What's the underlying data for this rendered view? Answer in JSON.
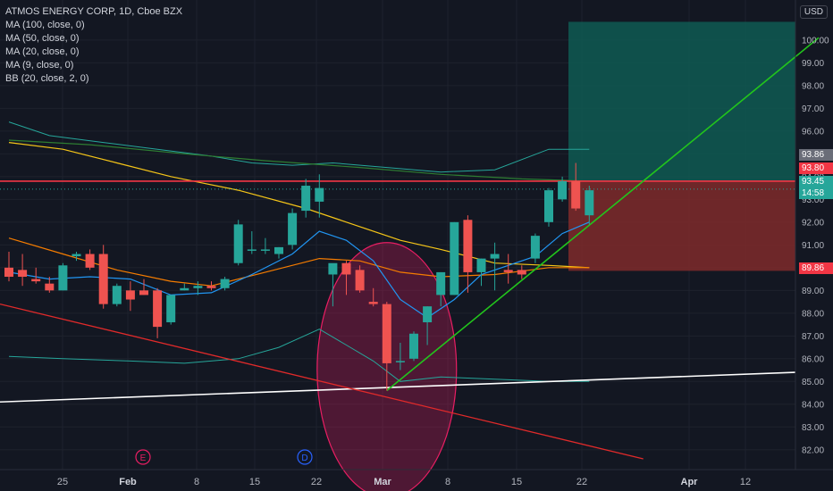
{
  "header": {
    "title": "ATMOS ENERGY CORP, 1D, Cboe BZX",
    "indicators": [
      "MA (100, close, 0)",
      "MA (50, close, 0)",
      "MA (20, close, 0)",
      "MA (9, close, 0)",
      "BB (20, close, 2, 0)"
    ],
    "currency": "USD"
  },
  "price_tags": {
    "upper_level": "93.86",
    "resistance": "93.80",
    "last_price": "93.45",
    "countdown": "14:58",
    "stop_level": "89.86"
  },
  "event_markers": [
    {
      "label": "E",
      "x": "Feb 1"
    },
    {
      "label": "D",
      "x": "Feb 19"
    }
  ],
  "colors": {
    "background": "#131722",
    "up": "#26a69a",
    "down": "#ef5350",
    "target_zone": "#0f5b52",
    "stop_zone": "#7f2a2a",
    "resistance_line": "#f23645",
    "trend_line": "#22c51c",
    "support_line": "#ffffff"
  },
  "chart_data": {
    "type": "candlestick",
    "symbol": "ATMOS ENERGY CORP",
    "interval": "1D",
    "exchange": "Cboe BZX",
    "y_range": [
      81.6,
      100.7
    ],
    "y_ticks": [
      "82.00",
      "83.00",
      "84.00",
      "85.00",
      "86.00",
      "87.00",
      "88.00",
      "89.00",
      "90.00",
      "91.00",
      "92.00",
      "93.00",
      "94.00",
      "95.00",
      "96.00",
      "97.00",
      "98.00",
      "99.00",
      "100.00"
    ],
    "x_ticks": [
      {
        "label": "25",
        "bold": false
      },
      {
        "label": "Feb",
        "bold": true
      },
      {
        "label": "8",
        "bold": false
      },
      {
        "label": "15",
        "bold": false
      },
      {
        "label": "22",
        "bold": false
      },
      {
        "label": "Mar",
        "bold": true
      },
      {
        "label": "8",
        "bold": false
      },
      {
        "label": "15",
        "bold": false
      },
      {
        "label": "22",
        "bold": false
      },
      {
        "label": "Apr",
        "bold": true
      },
      {
        "label": "12",
        "bold": false
      }
    ],
    "candles": [
      {
        "o": 90.0,
        "h": 90.7,
        "l": 89.4,
        "c": 89.6
      },
      {
        "o": 89.9,
        "h": 90.6,
        "l": 89.2,
        "c": 89.6
      },
      {
        "o": 89.5,
        "h": 90.0,
        "l": 89.3,
        "c": 89.4
      },
      {
        "o": 89.3,
        "h": 89.6,
        "l": 88.9,
        "c": 89.0
      },
      {
        "o": 89.0,
        "h": 90.2,
        "l": 89.0,
        "c": 90.1
      },
      {
        "o": 90.5,
        "h": 90.7,
        "l": 90.3,
        "c": 90.6
      },
      {
        "o": 90.6,
        "h": 90.8,
        "l": 89.9,
        "c": 90.0
      },
      {
        "o": 90.6,
        "h": 91.0,
        "l": 88.2,
        "c": 88.4
      },
      {
        "o": 88.4,
        "h": 89.3,
        "l": 88.3,
        "c": 89.2
      },
      {
        "o": 89.0,
        "h": 89.4,
        "l": 88.1,
        "c": 88.6
      },
      {
        "o": 89.0,
        "h": 89.5,
        "l": 88.8,
        "c": 88.8
      },
      {
        "o": 89.0,
        "h": 89.1,
        "l": 86.9,
        "c": 87.4
      },
      {
        "o": 87.6,
        "h": 88.8,
        "l": 87.5,
        "c": 88.8
      },
      {
        "o": 89.0,
        "h": 89.3,
        "l": 89.0,
        "c": 89.1
      },
      {
        "o": 89.1,
        "h": 89.4,
        "l": 88.8,
        "c": 89.2
      },
      {
        "o": 89.2,
        "h": 89.4,
        "l": 89.0,
        "c": 89.1
      },
      {
        "o": 89.1,
        "h": 89.6,
        "l": 89.0,
        "c": 89.5
      },
      {
        "o": 90.2,
        "h": 92.1,
        "l": 90.1,
        "c": 91.9
      },
      {
        "o": 90.8,
        "h": 91.6,
        "l": 90.6,
        "c": 90.8
      },
      {
        "o": 90.8,
        "h": 91.3,
        "l": 90.6,
        "c": 90.8
      },
      {
        "o": 90.6,
        "h": 90.9,
        "l": 90.4,
        "c": 90.9
      },
      {
        "o": 91.0,
        "h": 92.6,
        "l": 90.8,
        "c": 92.4
      },
      {
        "o": 92.5,
        "h": 93.9,
        "l": 92.2,
        "c": 93.6
      },
      {
        "o": 92.9,
        "h": 94.1,
        "l": 92.2,
        "c": 93.5
      },
      {
        "o": 89.7,
        "h": 90.1,
        "l": 88.3,
        "c": 90.2
      },
      {
        "o": 90.2,
        "h": 90.3,
        "l": 88.8,
        "c": 89.7
      },
      {
        "o": 89.9,
        "h": 90.1,
        "l": 88.9,
        "c": 89.0
      },
      {
        "o": 88.5,
        "h": 89.1,
        "l": 88.3,
        "c": 88.4
      },
      {
        "o": 88.4,
        "h": 88.5,
        "l": 84.6,
        "c": 85.8
      },
      {
        "o": 85.9,
        "h": 86.7,
        "l": 85.5,
        "c": 85.9
      },
      {
        "o": 86.0,
        "h": 87.2,
        "l": 85.9,
        "c": 87.1
      },
      {
        "o": 87.6,
        "h": 88.3,
        "l": 86.6,
        "c": 88.3
      },
      {
        "o": 88.8,
        "h": 89.8,
        "l": 88.3,
        "c": 89.8
      },
      {
        "o": 88.8,
        "h": 92.0,
        "l": 88.8,
        "c": 92.0
      },
      {
        "o": 92.1,
        "h": 92.3,
        "l": 88.9,
        "c": 89.8
      },
      {
        "o": 89.8,
        "h": 90.4,
        "l": 89.2,
        "c": 90.4
      },
      {
        "o": 90.4,
        "h": 91.1,
        "l": 89.0,
        "c": 90.6
      },
      {
        "o": 89.9,
        "h": 90.6,
        "l": 89.3,
        "c": 89.8
      },
      {
        "o": 89.9,
        "h": 90.1,
        "l": 89.5,
        "c": 89.7
      },
      {
        "o": 90.4,
        "h": 91.5,
        "l": 90.2,
        "c": 91.4
      },
      {
        "o": 92.0,
        "h": 93.5,
        "l": 91.8,
        "c": 93.4
      },
      {
        "o": 93.0,
        "h": 94.0,
        "l": 92.9,
        "c": 93.8
      },
      {
        "o": 93.8,
        "h": 94.6,
        "l": 92.5,
        "c": 92.6
      },
      {
        "o": 92.3,
        "h": 93.6,
        "l": 91.9,
        "c": 93.4
      }
    ],
    "moving_averages": [
      {
        "name": "MA (100, close, 0)",
        "color": "#2e7d32",
        "points": [
          [
            0,
            95.6
          ],
          [
            6,
            95.4
          ],
          [
            13,
            95.0
          ],
          [
            19,
            94.7
          ],
          [
            26,
            94.4
          ],
          [
            32,
            94.1
          ],
          [
            38,
            93.9
          ],
          [
            43,
            93.8
          ]
        ]
      },
      {
        "name": "MA (50, close, 0)",
        "color": "#f5c518",
        "points": [
          [
            0,
            95.5
          ],
          [
            4,
            95.2
          ],
          [
            8,
            94.6
          ],
          [
            12,
            94.0
          ],
          [
            17,
            93.4
          ],
          [
            22,
            92.6
          ],
          [
            26,
            91.8
          ],
          [
            29,
            91.2
          ],
          [
            32,
            90.8
          ],
          [
            36,
            90.2
          ],
          [
            40,
            90.1
          ],
          [
            43,
            90.0
          ]
        ]
      },
      {
        "name": "MA (20, close, 0)",
        "color": "#f57c00",
        "points": [
          [
            0,
            91.3
          ],
          [
            4,
            90.6
          ],
          [
            8,
            89.9
          ],
          [
            12,
            89.4
          ],
          [
            15,
            89.2
          ],
          [
            19,
            89.8
          ],
          [
            23,
            90.4
          ],
          [
            26,
            90.3
          ],
          [
            29,
            89.8
          ],
          [
            32,
            89.6
          ],
          [
            36,
            89.7
          ],
          [
            40,
            90.0
          ],
          [
            43,
            90.0
          ]
        ]
      },
      {
        "name": "MA (9, close, 0)",
        "color": "#2196f3",
        "points": [
          [
            0,
            89.8
          ],
          [
            3,
            89.5
          ],
          [
            6,
            89.6
          ],
          [
            9,
            89.5
          ],
          [
            12,
            88.8
          ],
          [
            15,
            88.9
          ],
          [
            18,
            89.7
          ],
          [
            21,
            90.6
          ],
          [
            23,
            91.6
          ],
          [
            25,
            91.2
          ],
          [
            27,
            90.3
          ],
          [
            29,
            88.6
          ],
          [
            31,
            87.8
          ],
          [
            33,
            88.6
          ],
          [
            35,
            89.7
          ],
          [
            37,
            90.1
          ],
          [
            39,
            90.5
          ],
          [
            41,
            91.5
          ],
          [
            43,
            92.0
          ]
        ]
      }
    ],
    "bollinger": {
      "name": "BB (20, close, 2, 0)",
      "color": "#26a69a",
      "upper": [
        [
          0,
          96.4
        ],
        [
          3,
          95.8
        ],
        [
          7,
          95.5
        ],
        [
          11,
          95.2
        ],
        [
          15,
          94.9
        ],
        [
          18,
          94.6
        ],
        [
          21,
          94.5
        ],
        [
          24,
          94.6
        ],
        [
          28,
          94.4
        ],
        [
          32,
          94.2
        ],
        [
          36,
          94.3
        ],
        [
          40,
          95.2
        ],
        [
          43,
          95.2
        ]
      ],
      "lower": [
        [
          0,
          86.1
        ],
        [
          4,
          86.0
        ],
        [
          9,
          85.9
        ],
        [
          13,
          85.8
        ],
        [
          17,
          86.0
        ],
        [
          20,
          86.5
        ],
        [
          23,
          87.3
        ],
        [
          25,
          86.6
        ],
        [
          27,
          85.9
        ],
        [
          29,
          85.0
        ],
        [
          32,
          85.2
        ],
        [
          36,
          85.1
        ],
        [
          40,
          85.0
        ],
        [
          43,
          85.0
        ]
      ],
      "basis_reference": "MA (20, close, 0)"
    },
    "drawings": {
      "resistance": 93.8,
      "long_position": {
        "entry": 93.8,
        "target": 100.8,
        "stop": 89.86
      },
      "trend_line": {
        "from": [
          28,
          84.6
        ],
        "to": [
          60,
          100.1
        ]
      },
      "support_line": [
        [
          -2,
          84.1
        ],
        [
          60,
          85.4
        ]
      ],
      "descending_line": [
        [
          -2,
          88.4
        ],
        [
          47,
          81.6
        ]
      ],
      "ellipse": {
        "center": [
          28,
          85.5
        ],
        "rx_bars": 4.5,
        "ry_price": 5.6
      }
    }
  }
}
